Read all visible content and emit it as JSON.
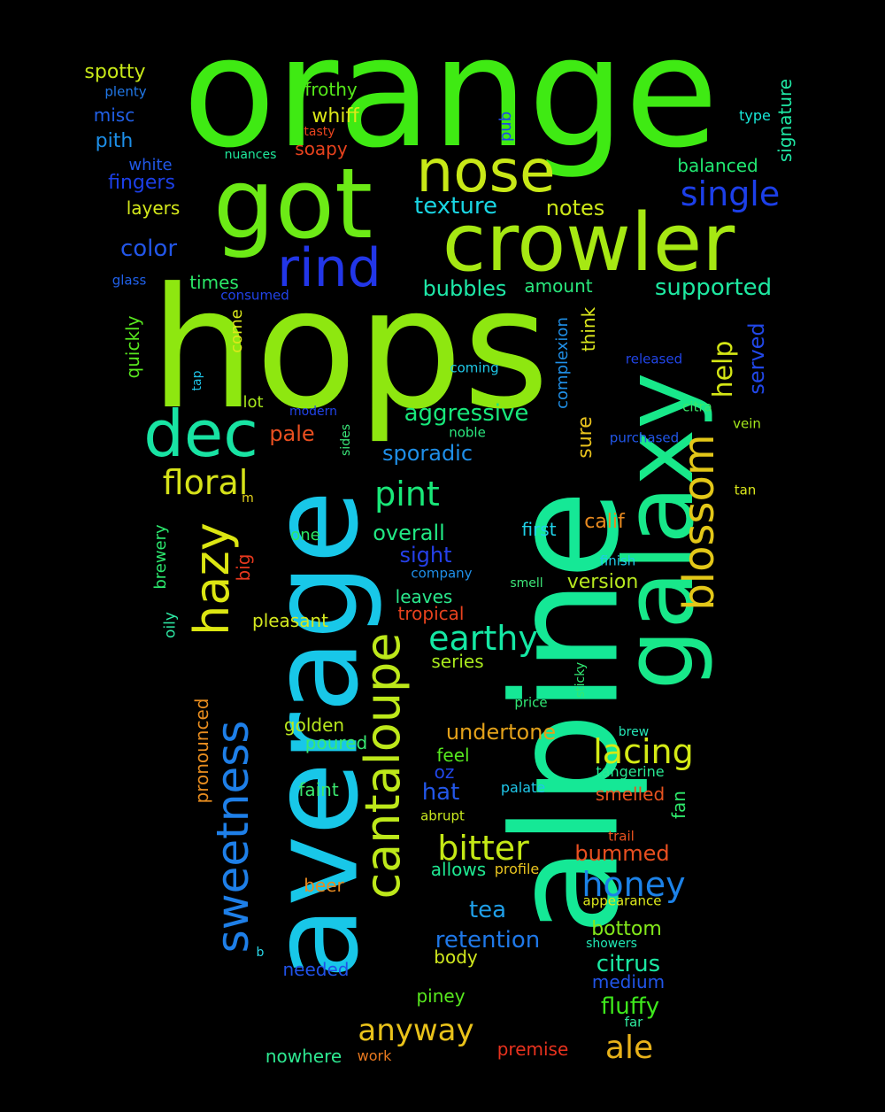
{
  "words": [
    {
      "text": "orange",
      "color": "#3fea13"
    },
    {
      "text": "hops",
      "color": "#8ee710"
    },
    {
      "text": "alpine",
      "color": "#15e896"
    },
    {
      "text": "average",
      "color": "#18c7e8"
    },
    {
      "text": "galaxy",
      "color": "#18e88a"
    },
    {
      "text": "got",
      "color": "#6cea16"
    },
    {
      "text": "crowler",
      "color": "#a6e813"
    },
    {
      "text": "nose",
      "color": "#c8e817"
    },
    {
      "text": "rind",
      "color": "#2236e8"
    },
    {
      "text": "dec",
      "color": "#18e3a3"
    },
    {
      "text": "hazy",
      "color": "#dce612"
    },
    {
      "text": "cantaloupe",
      "color": "#bde81a"
    },
    {
      "text": "sweetness",
      "color": "#1e7fe8"
    },
    {
      "text": "blossom",
      "color": "#e3c718"
    },
    {
      "text": "single",
      "color": "#1c3fe8"
    },
    {
      "text": "floral",
      "color": "#d6e219"
    },
    {
      "text": "pint",
      "color": "#19e879"
    },
    {
      "text": "earthy",
      "color": "#15e8a4"
    },
    {
      "text": "bitter",
      "color": "#c4e815"
    },
    {
      "text": "honey",
      "color": "#1c82e8"
    },
    {
      "text": "lacing",
      "color": "#d4ea15"
    },
    {
      "text": "anyway",
      "color": "#e9c21a"
    },
    {
      "text": "ale",
      "color": "#e8b21a"
    },
    {
      "text": "help",
      "color": "#d4e615"
    },
    {
      "text": "served",
      "color": "#2147e8"
    },
    {
      "text": "texture",
      "color": "#19d5e3"
    },
    {
      "text": "notes",
      "color": "#cce618"
    },
    {
      "text": "supported",
      "color": "#1ee8a1"
    },
    {
      "text": "aggressive",
      "color": "#18e87b"
    },
    {
      "text": "sporadic",
      "color": "#1f8fe8"
    },
    {
      "text": "overall",
      "color": "#21e884"
    },
    {
      "text": "sight",
      "color": "#2540e8"
    },
    {
      "text": "retention",
      "color": "#1f78e8"
    },
    {
      "text": "undertone",
      "color": "#e3a11a"
    },
    {
      "text": "citrus",
      "color": "#1be8a2"
    },
    {
      "text": "fluffy",
      "color": "#3ee81c"
    },
    {
      "text": "bottom",
      "color": "#83e81b"
    },
    {
      "text": "tea",
      "color": "#1f9fe8"
    },
    {
      "text": "hat",
      "color": "#2357e8"
    },
    {
      "text": "bummed",
      "color": "#e84f20"
    },
    {
      "text": "bubbles",
      "color": "#1ee8a8"
    },
    {
      "text": "color",
      "color": "#2256e8"
    },
    {
      "text": "pith",
      "color": "#1d8fe8"
    },
    {
      "text": "misc",
      "color": "#2160e8"
    },
    {
      "text": "fingers",
      "color": "#1c3fe8"
    },
    {
      "text": "spotty",
      "color": "#c7e818"
    },
    {
      "text": "frothy",
      "color": "#55e81a"
    },
    {
      "text": "whiff",
      "color": "#dde818"
    },
    {
      "text": "soapy",
      "color": "#e8421d"
    },
    {
      "text": "balanced",
      "color": "#21e871"
    },
    {
      "text": "signature",
      "color": "#1fe8a5"
    },
    {
      "text": "layers",
      "color": "#d4e81b"
    },
    {
      "text": "white",
      "color": "#2158e8"
    },
    {
      "text": "pub",
      "color": "#2046e8"
    },
    {
      "text": "type",
      "color": "#18e8d9"
    },
    {
      "text": "tasty",
      "color": "#e8431e"
    },
    {
      "text": "nuances",
      "color": "#1ee89c"
    },
    {
      "text": "plenty",
      "color": "#2178e8"
    },
    {
      "text": "times",
      "color": "#2be868"
    },
    {
      "text": "glass",
      "color": "#2060e8"
    },
    {
      "text": "consumed",
      "color": "#2143e8"
    },
    {
      "text": "amount",
      "color": "#2ae87d"
    },
    {
      "text": "quickly",
      "color": "#58e81f"
    },
    {
      "text": "come",
      "color": "#dbe81b"
    },
    {
      "text": "complexion",
      "color": "#2090e8"
    },
    {
      "text": "think",
      "color": "#dde81c"
    },
    {
      "text": "coming",
      "color": "#1fc8e8"
    },
    {
      "text": "released",
      "color": "#2145e8"
    },
    {
      "text": "tap",
      "color": "#1fc4e8"
    },
    {
      "text": "lot",
      "color": "#a7e81c"
    },
    {
      "text": "modern",
      "color": "#2143e8"
    },
    {
      "text": "pale",
      "color": "#e84f20"
    },
    {
      "text": "noble",
      "color": "#2be87f"
    },
    {
      "text": "citra",
      "color": "#3be86a"
    },
    {
      "text": "vein",
      "color": "#a5e81c"
    },
    {
      "text": "purchased",
      "color": "#2156e8"
    },
    {
      "text": "sides",
      "color": "#3ae87a"
    },
    {
      "text": "sure",
      "color": "#e8c21d"
    },
    {
      "text": "m",
      "color": "#e8d61d"
    },
    {
      "text": "tan",
      "color": "#dbe81c"
    },
    {
      "text": "calif",
      "color": "#e88a20"
    },
    {
      "text": "brewery",
      "color": "#2ce86e"
    },
    {
      "text": "big",
      "color": "#e8381e"
    },
    {
      "text": "one",
      "color": "#2be864"
    },
    {
      "text": "first",
      "color": "#1fd1e8"
    },
    {
      "text": "finish",
      "color": "#1fcae8"
    },
    {
      "text": "company",
      "color": "#1f8fe8"
    },
    {
      "text": "smell",
      "color": "#3ee87a"
    },
    {
      "text": "version",
      "color": "#b8e81f"
    },
    {
      "text": "leaves",
      "color": "#2ae88c"
    },
    {
      "text": "oily",
      "color": "#2ee8a4"
    },
    {
      "text": "pleasant",
      "color": "#d4e81f"
    },
    {
      "text": "tropical",
      "color": "#e8421e"
    },
    {
      "text": "series",
      "color": "#a8e81d"
    },
    {
      "text": "sticky",
      "color": "#31e872"
    },
    {
      "text": "pronounced",
      "color": "#e88d1f"
    },
    {
      "text": "golden",
      "color": "#b8e81e"
    },
    {
      "text": "poured",
      "color": "#39e872"
    },
    {
      "text": "price",
      "color": "#31e875"
    },
    {
      "text": "brew",
      "color": "#25e8b8"
    },
    {
      "text": "feel",
      "color": "#56e81e"
    },
    {
      "text": "oz",
      "color": "#2147e8"
    },
    {
      "text": "tangerine",
      "color": "#29e893"
    },
    {
      "text": "fan",
      "color": "#2ee86b"
    },
    {
      "text": "faint",
      "color": "#3be86f"
    },
    {
      "text": "smelled",
      "color": "#e8531f"
    },
    {
      "text": "palate",
      "color": "#1fc6e8"
    },
    {
      "text": "abrupt",
      "color": "#c8e81f"
    },
    {
      "text": "trail",
      "color": "#e8511f"
    },
    {
      "text": "allows",
      "color": "#1fe892"
    },
    {
      "text": "beer",
      "color": "#e88a20"
    },
    {
      "text": "profile",
      "color": "#e8c31f"
    },
    {
      "text": "appearance",
      "color": "#dbe81c"
    },
    {
      "text": "body",
      "color": "#d1e81e"
    },
    {
      "text": "showers",
      "color": "#21e8b5"
    },
    {
      "text": "b",
      "color": "#2ad8e8"
    },
    {
      "text": "needed",
      "color": "#2152e8"
    },
    {
      "text": "medium",
      "color": "#2155e8"
    },
    {
      "text": "piney",
      "color": "#58e81e"
    },
    {
      "text": "far",
      "color": "#2fe89c"
    },
    {
      "text": "nowhere",
      "color": "#2ee891"
    },
    {
      "text": "work",
      "color": "#e8781f"
    },
    {
      "text": "premise",
      "color": "#e8321e"
    }
  ]
}
